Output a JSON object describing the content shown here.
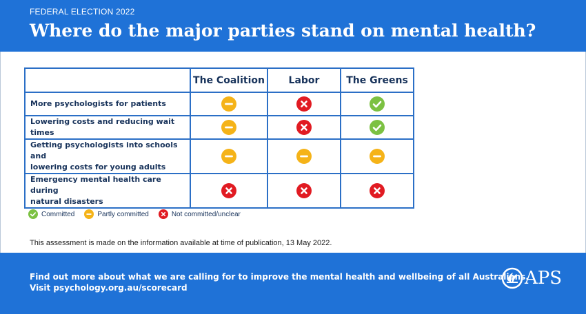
{
  "header": {
    "eyebrow": "FEDERAL ELECTION 2022",
    "title": "Where do the major parties stand on mental health?"
  },
  "table": {
    "parties": [
      "The Coalition",
      "Labor",
      "The Greens"
    ],
    "rows": [
      {
        "criterion_line1": "More psychologists for patients",
        "criterion_line2": "",
        "statuses": [
          "partly",
          "not",
          "committed"
        ]
      },
      {
        "criterion_line1": "Lowering costs and reducing wait times",
        "criterion_line2": "",
        "statuses": [
          "partly",
          "not",
          "committed"
        ]
      },
      {
        "criterion_line1": "Getting psychologists into schools and",
        "criterion_line2": "lowering costs for young adults",
        "statuses": [
          "partly",
          "partly",
          "partly"
        ]
      },
      {
        "criterion_line1": "Emergency mental health care during",
        "criterion_line2": "natural disasters",
        "statuses": [
          "not",
          "not",
          "not"
        ]
      }
    ]
  },
  "legend": {
    "committed": "Committed",
    "partly": "Partly committed",
    "not": "Not committed/unclear"
  },
  "note": "This assessment is made on the information available at time of publication, 13 May 2022.",
  "footer": {
    "line1": "Find out more about what we are calling for to improve the mental health and wellbeing of all Australians.",
    "line2": "Visit psychology.org.au/scorecard",
    "logo_text": "APS"
  },
  "colors": {
    "brand_blue": "#1f72d7",
    "committed": "#7cc142",
    "partly": "#f5b318",
    "not": "#e11b22",
    "text_navy": "#17325a"
  },
  "icons": {
    "committed": "check-circle-icon",
    "partly": "dash-circle-icon",
    "not": "x-circle-icon"
  }
}
